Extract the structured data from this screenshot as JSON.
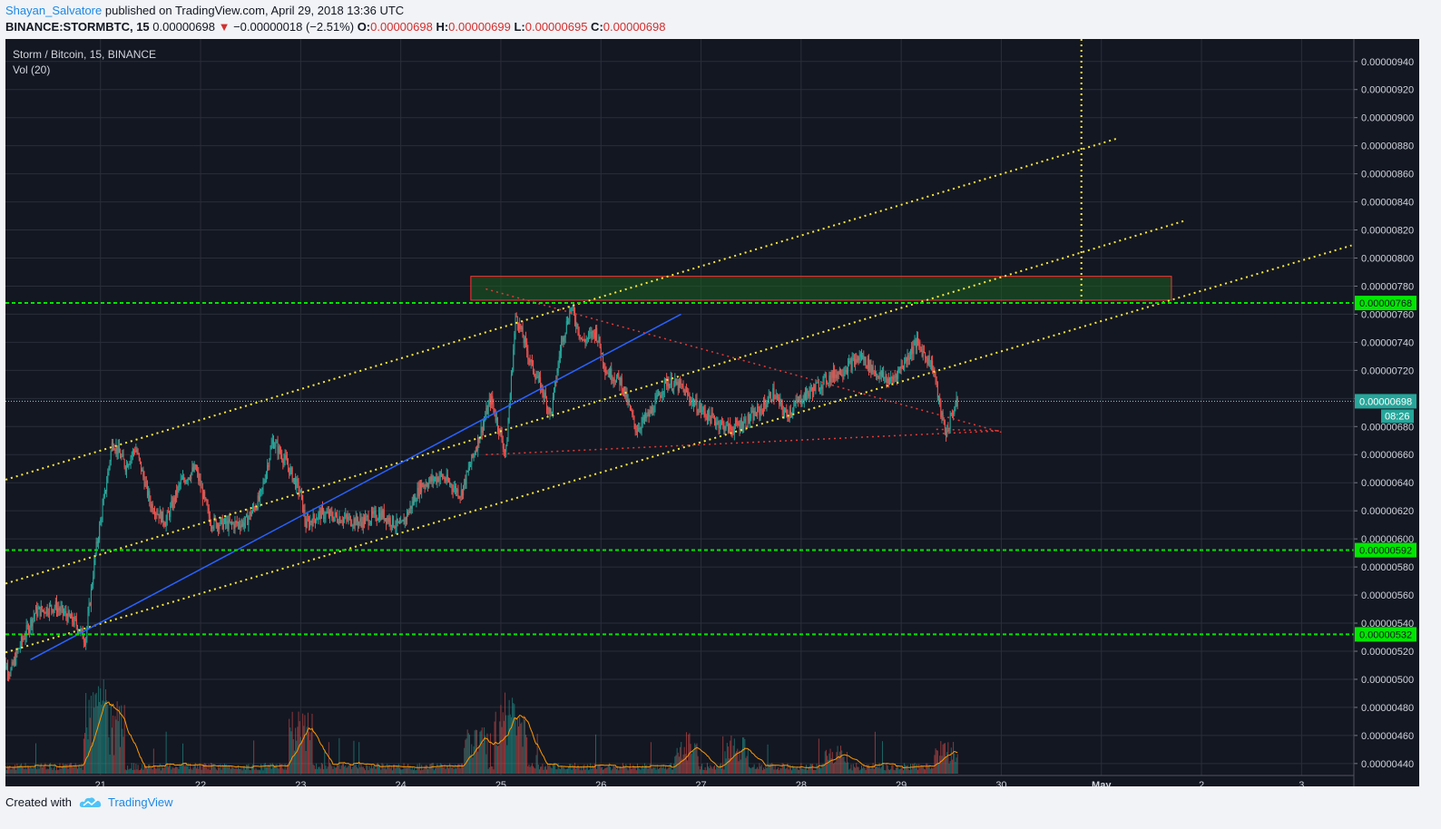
{
  "header": {
    "author": "Shayan_Salvatore",
    "published": " published on TradingView.com, April 29, 2018 13:36 UTC",
    "symbol": "BINANCE:STORMBTC, 15",
    "last": " 0.00000698 ",
    "change_icon": "down-triangle-icon",
    "change": " −0.00000018 (−2.51%) ",
    "o_label": "O:",
    "o_value": "0.00000698",
    "h_label": " H:",
    "h_value": "0.00000699",
    "l_label": " L:",
    "l_value": "0.00000695",
    "c_label": " C:",
    "c_value": "0.00000698"
  },
  "legend": {
    "title": "Storm / Bitcoin, 15, BINANCE",
    "volume": "Vol (20)"
  },
  "footer": {
    "created_with": "Created with",
    "brand": "TradingView",
    "brand_icon": "tradingview-cloud-icon"
  },
  "colors": {
    "background": "#131722",
    "grid": "#2a2e39",
    "up": "#26a69a",
    "down": "#ef5350",
    "volume_ma": "#ff9800",
    "channel": "#ffeb3b",
    "support_resistance": "#00e600",
    "triangle": "#e53935",
    "trendline": "#2962ff",
    "zone_fill": "#1b5e20",
    "zone_border": "#ff3333",
    "last_price_line": "#8ad2d8",
    "last_price_label": "#26a69a"
  },
  "chart_data": {
    "type": "candlestick",
    "title": "Storm / Bitcoin, 15, BINANCE",
    "x_ticks": [
      "21",
      "22",
      "23",
      "24",
      "25",
      "26",
      "27",
      "28",
      "29",
      "30",
      "May",
      "2",
      "3"
    ],
    "y_ticks": [
      "0.00000940",
      "0.00000920",
      "0.00000900",
      "0.00000880",
      "0.00000860",
      "0.00000840",
      "0.00000820",
      "0.00000800",
      "0.00000780",
      "0.00000760",
      "0.00000740",
      "0.00000720",
      "0.00000700",
      "0.00000680",
      "0.00000660",
      "0.00000640",
      "0.00000620",
      "0.00000600",
      "0.00000580",
      "0.00000560",
      "0.00000540",
      "0.00000520",
      "0.00000500",
      "0.00000480",
      "0.00000460",
      "0.00000440"
    ],
    "ylim": [
      4.315e-06,
      9.56e-06
    ],
    "grid": true,
    "price_path": [
      [
        20.0,
        515
      ],
      [
        20.1,
        505
      ],
      [
        20.2,
        525
      ],
      [
        20.35,
        548
      ],
      [
        20.55,
        552
      ],
      [
        20.75,
        540
      ],
      [
        20.85,
        528
      ],
      [
        20.95,
        590
      ],
      [
        21.05,
        635
      ],
      [
        21.12,
        670
      ],
      [
        21.25,
        652
      ],
      [
        21.35,
        665
      ],
      [
        21.5,
        625
      ],
      [
        21.65,
        612
      ],
      [
        21.8,
        640
      ],
      [
        21.95,
        650
      ],
      [
        22.1,
        612
      ],
      [
        22.3,
        610
      ],
      [
        22.45,
        612
      ],
      [
        22.6,
        630
      ],
      [
        22.72,
        670
      ],
      [
        22.85,
        655
      ],
      [
        23.0,
        632
      ],
      [
        23.05,
        610
      ],
      [
        23.2,
        618
      ],
      [
        23.4,
        615
      ],
      [
        23.6,
        612
      ],
      [
        23.8,
        618
      ],
      [
        24.0,
        608
      ],
      [
        24.2,
        638
      ],
      [
        24.4,
        645
      ],
      [
        24.6,
        632
      ],
      [
        24.75,
        665
      ],
      [
        24.9,
        700
      ],
      [
        25.05,
        660
      ],
      [
        25.15,
        760
      ],
      [
        25.3,
        725
      ],
      [
        25.42,
        705
      ],
      [
        25.5,
        688
      ],
      [
        25.6,
        738
      ],
      [
        25.7,
        765
      ],
      [
        25.82,
        740
      ],
      [
        25.95,
        748
      ],
      [
        26.05,
        720
      ],
      [
        26.2,
        712
      ],
      [
        26.35,
        678
      ],
      [
        26.5,
        690
      ],
      [
        26.65,
        712
      ],
      [
        26.8,
        708
      ],
      [
        26.95,
        695
      ],
      [
        27.1,
        686
      ],
      [
        27.3,
        678
      ],
      [
        27.45,
        684
      ],
      [
        27.6,
        692
      ],
      [
        27.72,
        704
      ],
      [
        27.85,
        688
      ],
      [
        28.0,
        700
      ],
      [
        28.15,
        708
      ],
      [
        28.3,
        716
      ],
      [
        28.45,
        722
      ],
      [
        28.6,
        730
      ],
      [
        28.75,
        718
      ],
      [
        28.9,
        712
      ],
      [
        29.05,
        728
      ],
      [
        29.15,
        740
      ],
      [
        29.25,
        730
      ],
      [
        29.32,
        722
      ],
      [
        29.4,
        688
      ],
      [
        29.45,
        675
      ],
      [
        29.52,
        692
      ],
      [
        29.57,
        698
      ]
    ],
    "volume_spikes": [
      [
        21.05,
        0.95
      ],
      [
        21.12,
        0.75
      ],
      [
        20.95,
        0.9
      ],
      [
        25.05,
        0.7
      ],
      [
        25.15,
        0.75
      ],
      [
        23.0,
        0.58
      ],
      [
        24.75,
        0.45
      ],
      [
        26.85,
        0.4
      ],
      [
        27.35,
        0.35
      ],
      [
        28.35,
        0.28
      ],
      [
        29.45,
        0.3
      ]
    ],
    "horizontal_levels": [
      7.68e-06,
      5.92e-06,
      5.32e-06
    ],
    "level_labels": [
      "0.00000768",
      "0.00000592",
      "0.00000532"
    ],
    "last_price": 6.98e-06,
    "last_price_label": "0.00000698",
    "countdown_label": "08:26",
    "resistance_zone": {
      "x0": 24.7,
      "x1": 31.7,
      "y0": 7.7e-06,
      "y1": 7.87e-06
    },
    "channel_lines": [
      {
        "x0": 20.0,
        "y0": 6.41e-06,
        "x1": 31.15,
        "y1": 8.85e-06
      },
      {
        "x0": 20.0,
        "y0": 5.67e-06,
        "x1": 31.85,
        "y1": 8.27e-06
      },
      {
        "x0": 20.0,
        "y0": 5.18e-06,
        "x1": 33.5,
        "y1": 8.09e-06
      }
    ],
    "trend_line": {
      "x0": 20.3,
      "y0": 5.14e-06,
      "x1": 26.8,
      "y1": 7.6e-06
    },
    "triangle_lines": [
      {
        "x0": 24.85,
        "y0": 7.78e-06,
        "x1": 30.0,
        "y1": 6.76e-06
      },
      {
        "x0": 24.85,
        "y0": 6.6e-06,
        "x1": 30.0,
        "y1": 6.77e-06
      },
      {
        "x0": 29.35,
        "y0": 6.78e-06,
        "x1": 30.0,
        "y1": 6.77e-06
      }
    ],
    "time_marker_x": 30.8
  }
}
